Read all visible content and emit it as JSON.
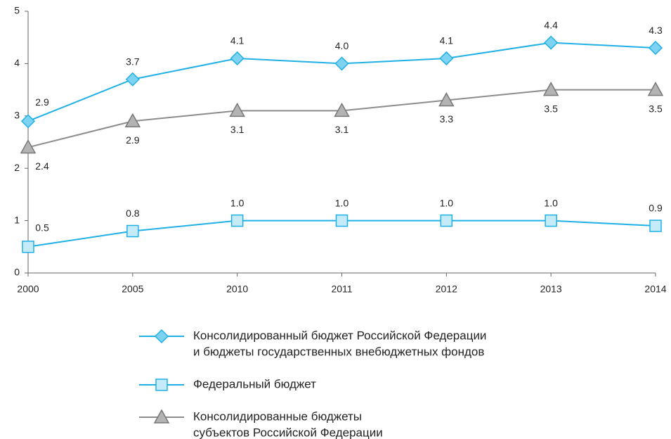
{
  "chart_data": {
    "type": "line",
    "categories": [
      "2000",
      "2005",
      "2010",
      "2011",
      "2012",
      "2013",
      "2014"
    ],
    "ylim": [
      0,
      5
    ],
    "yticks": [
      0,
      1,
      2,
      3,
      4,
      5
    ],
    "series": [
      {
        "name": [
          "Консолидированный бюджет Российской Федерации",
          "и бюджеты государственных внебюджетных фондов"
        ],
        "color": "#1fb0e6",
        "marker": "diamond",
        "marker_fill": "#7fd3f2",
        "label_side": "above",
        "values": [
          2.9,
          3.7,
          4.1,
          4.0,
          4.1,
          4.4,
          4.3
        ],
        "value_labels": [
          "2.9",
          "3.7",
          "4.1",
          "4.0",
          "4.1",
          "4.4",
          "4.3"
        ]
      },
      {
        "name": [
          "Федеральный бюджет"
        ],
        "color": "#1fb0e6",
        "marker": "square",
        "marker_fill": "#c6ebf8",
        "label_side": "above",
        "values": [
          0.5,
          0.8,
          1.0,
          1.0,
          1.0,
          1.0,
          0.9
        ],
        "value_labels": [
          "0.5",
          "0.8",
          "1.0",
          "1.0",
          "1.0",
          "1.0",
          "0.9"
        ]
      },
      {
        "name": [
          "Консолидированные бюджеты",
          "субъектов Российской Федерации"
        ],
        "color": "#8c8c8c",
        "marker": "triangle",
        "marker_fill": "#b3b3b3",
        "label_side": "below",
        "values": [
          2.4,
          2.9,
          3.1,
          3.1,
          3.3,
          3.5,
          3.5
        ],
        "value_labels": [
          "2.4",
          "2.9",
          "3.1",
          "3.1",
          "3.3",
          "3.5",
          "3.5"
        ]
      }
    ]
  }
}
